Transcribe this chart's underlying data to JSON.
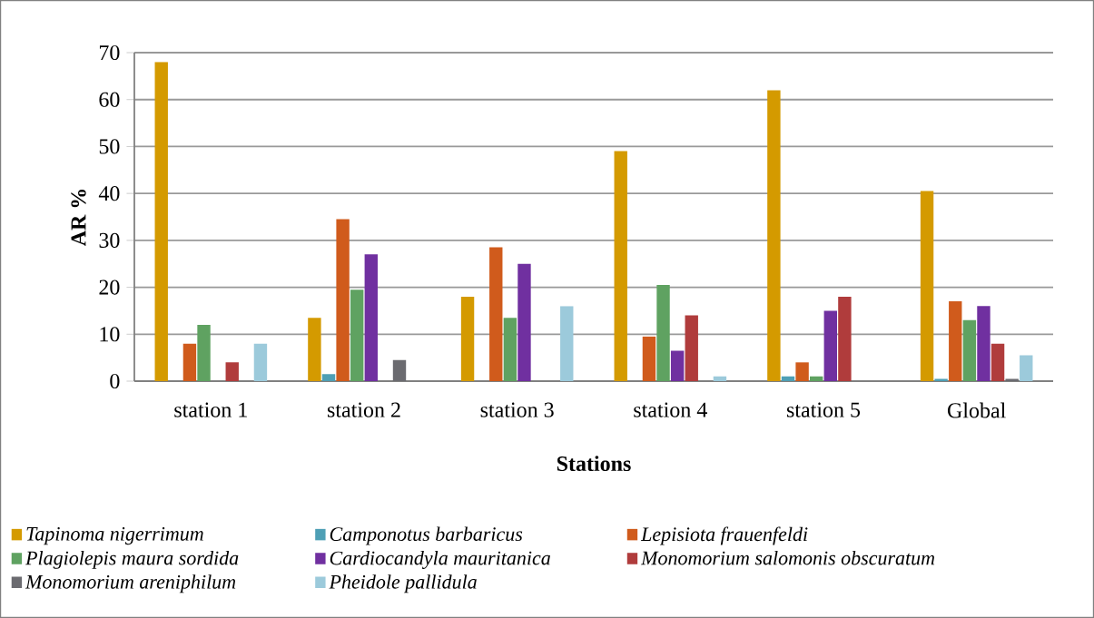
{
  "chart_data": {
    "type": "bar",
    "xlabel": "Stations",
    "ylabel": "AR %",
    "categories": [
      "station 1",
      "station 2",
      "station 3",
      "station 4",
      "station 5",
      "Global"
    ],
    "series": [
      {
        "name": "Tapinoma nigerrimum",
        "color": "#d49a00",
        "values": [
          68,
          13.5,
          18,
          49,
          62,
          40.5
        ]
      },
      {
        "name": "Camponotus barbaricus",
        "color": "#4e9fb5",
        "values": [
          0,
          1.5,
          0,
          0,
          1,
          0.5
        ]
      },
      {
        "name": "Lepisiota frauenfeldi",
        "color": "#d05b1c",
        "values": [
          8,
          34.5,
          28.5,
          9.5,
          4,
          17
        ]
      },
      {
        "name": "Plagiolepis maura sordida",
        "color": "#5fa261",
        "values": [
          12,
          19.5,
          13.5,
          20.5,
          1,
          13
        ]
      },
      {
        "name": "Cardiocandyla mauritanica",
        "color": "#7030a0",
        "values": [
          0,
          27,
          25,
          6.5,
          15,
          16
        ]
      },
      {
        "name": "Monomorium salomonis obscuratum",
        "color": "#b03c3c",
        "values": [
          4,
          0,
          0,
          14,
          18,
          8
        ]
      },
      {
        "name": "Monomorium areniphilum",
        "color": "#6b6b70",
        "values": [
          0,
          4.5,
          0,
          0,
          0,
          0.5
        ]
      },
      {
        "name": "Pheidole pallidula",
        "color": "#9ccadb",
        "values": [
          8,
          0,
          16,
          1,
          0,
          5.5
        ]
      }
    ],
    "ylim": [
      0,
      70
    ],
    "yticks": [
      0,
      10,
      20,
      30,
      40,
      50,
      60,
      70
    ],
    "grid": "y",
    "legend": "bottom"
  }
}
